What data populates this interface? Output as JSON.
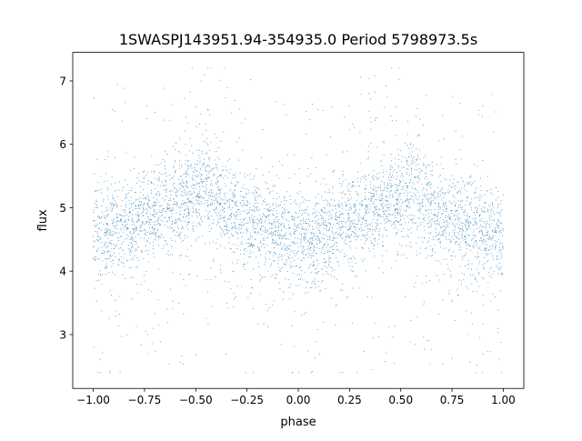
{
  "chart_data": {
    "type": "scatter",
    "title": "1SWASPJ143951.94-354935.0 Period 5798973.5s",
    "xlabel": "phase",
    "ylabel": "flux",
    "xlim": [
      -1.1,
      1.1
    ],
    "ylim": [
      2.15,
      7.45
    ],
    "xticks": [
      -1.0,
      -0.75,
      -0.5,
      -0.25,
      0.0,
      0.25,
      0.5,
      0.75,
      1.0
    ],
    "xtick_labels": [
      "−1.00",
      "−0.75",
      "−0.50",
      "−0.25",
      "0.00",
      "0.25",
      "0.50",
      "0.75",
      "1.00"
    ],
    "yticks": [
      3,
      4,
      5,
      6,
      7
    ],
    "ytick_labels": [
      "3",
      "4",
      "5",
      "6",
      "7"
    ],
    "grid": false,
    "marker_color": "#1f77b4",
    "series": [
      {
        "profile_phase": [
          -1.0,
          -0.9,
          -0.8,
          -0.7,
          -0.6,
          -0.5,
          -0.45,
          -0.4,
          -0.3,
          -0.2,
          -0.1,
          0.0,
          0.1,
          0.2,
          0.3,
          0.4,
          0.5,
          0.55,
          0.6,
          0.7,
          0.8,
          0.9,
          1.0
        ],
        "profile_median_flux": [
          4.55,
          4.65,
          4.75,
          4.95,
          5.05,
          5.15,
          5.35,
          5.1,
          4.85,
          4.75,
          4.65,
          4.5,
          4.55,
          4.65,
          4.85,
          5.05,
          5.15,
          5.35,
          5.1,
          4.85,
          4.75,
          4.65,
          4.55
        ],
        "scatter_spread": 0.45,
        "flux_min": 2.4,
        "flux_max": 7.2
      }
    ]
  }
}
